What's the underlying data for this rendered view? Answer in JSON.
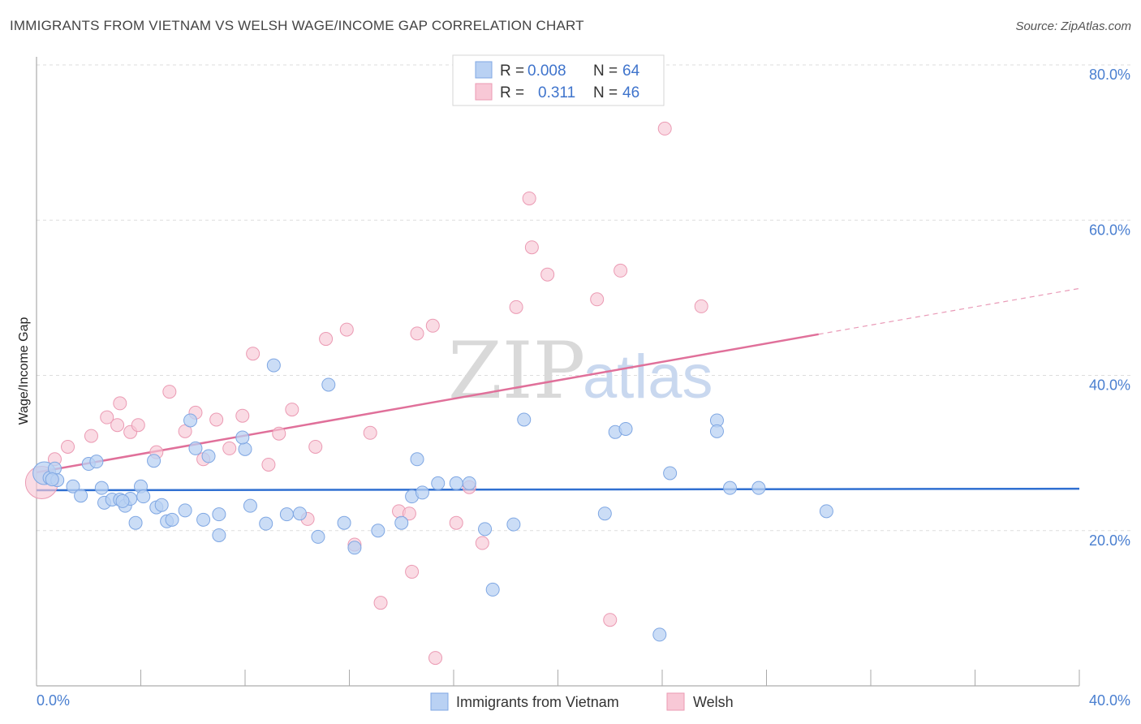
{
  "title": "IMMIGRANTS FROM VIETNAM VS WELSH WAGE/INCOME GAP CORRELATION CHART",
  "source": "Source: ZipAtlas.com",
  "watermark": {
    "zip": "ZIP",
    "atlas": "atlas"
  },
  "legend": {
    "r_label": "R =",
    "n_label": "N =",
    "series": [
      {
        "r": "0.008",
        "n": "64"
      },
      {
        "r": "0.311",
        "n": "46"
      }
    ]
  },
  "bottom_legend": [
    "Immigrants from Vietnam",
    "Welsh"
  ],
  "colors": {
    "blue_fill": "#b9d1f3",
    "blue_stroke": "#7fa7e3",
    "blue_line": "#2f6fd1",
    "pink_fill": "#f8c8d6",
    "pink_stroke": "#eb9ab3",
    "pink_line": "#e0709a",
    "grid": "#dddddd",
    "axis_text": "#4a7fd0"
  },
  "chart_data": {
    "type": "scatter",
    "title": "IMMIGRANTS FROM VIETNAM VS WELSH WAGE/INCOME GAP CORRELATION CHART",
    "xlabel": "",
    "ylabel": "Wage/Income Gap",
    "xlim": [
      0,
      40
    ],
    "ylim": [
      0,
      80
    ],
    "x_tick_labels": [
      "0.0%",
      "40.0%"
    ],
    "y_tick_labels": [
      "20.0%",
      "40.0%",
      "60.0%",
      "80.0%"
    ],
    "y_ticks": [
      20,
      40,
      60,
      80
    ],
    "grid": true,
    "legend_position": "top-center",
    "series": [
      {
        "name": "Immigrants from Vietnam",
        "r": 0.008,
        "n": 64,
        "trend": {
          "x": [
            0,
            40
          ],
          "y": [
            25.2,
            25.4
          ],
          "style": "solid"
        },
        "points": [
          [
            0.3,
            27.4
          ],
          [
            0.5,
            26.8
          ],
          [
            0.7,
            28.0
          ],
          [
            0.8,
            26.5
          ],
          [
            1.4,
            25.7
          ],
          [
            1.7,
            24.5
          ],
          [
            2.0,
            28.6
          ],
          [
            2.3,
            28.9
          ],
          [
            2.5,
            25.5
          ],
          [
            2.6,
            23.6
          ],
          [
            2.9,
            24.0
          ],
          [
            3.2,
            24.0
          ],
          [
            3.4,
            23.2
          ],
          [
            3.6,
            24.1
          ],
          [
            3.8,
            21.0
          ],
          [
            4.0,
            25.7
          ],
          [
            4.1,
            24.4
          ],
          [
            4.5,
            29.0
          ],
          [
            4.6,
            23.0
          ],
          [
            4.8,
            23.3
          ],
          [
            5.0,
            21.2
          ],
          [
            5.2,
            21.4
          ],
          [
            5.7,
            22.6
          ],
          [
            5.9,
            34.2
          ],
          [
            6.1,
            30.6
          ],
          [
            6.4,
            21.4
          ],
          [
            6.6,
            29.6
          ],
          [
            7.0,
            22.1
          ],
          [
            7.0,
            19.4
          ],
          [
            8.0,
            30.5
          ],
          [
            8.2,
            23.2
          ],
          [
            8.8,
            20.9
          ],
          [
            9.1,
            41.3
          ],
          [
            9.6,
            22.1
          ],
          [
            10.1,
            22.2
          ],
          [
            10.8,
            19.2
          ],
          [
            11.2,
            38.8
          ],
          [
            11.8,
            21.0
          ],
          [
            12.2,
            17.8
          ],
          [
            13.1,
            20.0
          ],
          [
            14.0,
            21.0
          ],
          [
            14.4,
            24.4
          ],
          [
            14.6,
            29.2
          ],
          [
            14.8,
            24.9
          ],
          [
            15.4,
            26.1
          ],
          [
            16.1,
            26.1
          ],
          [
            16.6,
            26.1
          ],
          [
            17.2,
            20.2
          ],
          [
            17.5,
            12.4
          ],
          [
            18.3,
            20.8
          ],
          [
            18.7,
            34.3
          ],
          [
            21.8,
            22.2
          ],
          [
            22.2,
            32.7
          ],
          [
            22.6,
            33.1
          ],
          [
            23.9,
            6.6
          ],
          [
            24.3,
            27.4
          ],
          [
            26.1,
            34.2
          ],
          [
            26.1,
            32.8
          ],
          [
            26.6,
            25.5
          ],
          [
            27.7,
            25.5
          ],
          [
            30.3,
            22.5
          ],
          [
            7.9,
            32.0
          ],
          [
            3.3,
            23.8
          ],
          [
            0.6,
            26.6
          ]
        ]
      },
      {
        "name": "Welsh",
        "r": 0.311,
        "n": 46,
        "trend": {
          "x": [
            0,
            30
          ],
          "y": [
            27.5,
            45.3
          ],
          "style": "solid",
          "dashed_to": [
            40,
            51.2
          ]
        },
        "points": [
          [
            0.2,
            26.2
          ],
          [
            0.7,
            29.2
          ],
          [
            1.2,
            30.8
          ],
          [
            2.1,
            32.2
          ],
          [
            2.7,
            34.6
          ],
          [
            3.2,
            36.4
          ],
          [
            3.1,
            33.6
          ],
          [
            3.6,
            32.7
          ],
          [
            3.9,
            33.6
          ],
          [
            4.6,
            30.1
          ],
          [
            5.1,
            37.9
          ],
          [
            5.7,
            32.8
          ],
          [
            6.1,
            35.2
          ],
          [
            6.4,
            29.2
          ],
          [
            6.9,
            34.3
          ],
          [
            7.4,
            30.6
          ],
          [
            7.9,
            34.8
          ],
          [
            8.3,
            42.8
          ],
          [
            8.9,
            28.5
          ],
          [
            9.3,
            32.5
          ],
          [
            9.8,
            35.6
          ],
          [
            10.4,
            21.5
          ],
          [
            10.7,
            30.8
          ],
          [
            11.1,
            44.7
          ],
          [
            11.9,
            45.9
          ],
          [
            12.2,
            18.2
          ],
          [
            12.8,
            32.6
          ],
          [
            13.2,
            10.7
          ],
          [
            13.9,
            22.5
          ],
          [
            14.3,
            22.2
          ],
          [
            14.4,
            14.7
          ],
          [
            14.6,
            45.4
          ],
          [
            15.2,
            46.4
          ],
          [
            15.3,
            3.6
          ],
          [
            16.1,
            21.0
          ],
          [
            16.6,
            25.6
          ],
          [
            17.1,
            18.4
          ],
          [
            18.4,
            48.8
          ],
          [
            18.9,
            62.8
          ],
          [
            19.0,
            56.5
          ],
          [
            19.6,
            53.0
          ],
          [
            21.5,
            49.8
          ],
          [
            22.4,
            53.5
          ],
          [
            24.1,
            71.8
          ],
          [
            25.5,
            48.9
          ],
          [
            22.0,
            8.5
          ]
        ]
      }
    ]
  }
}
